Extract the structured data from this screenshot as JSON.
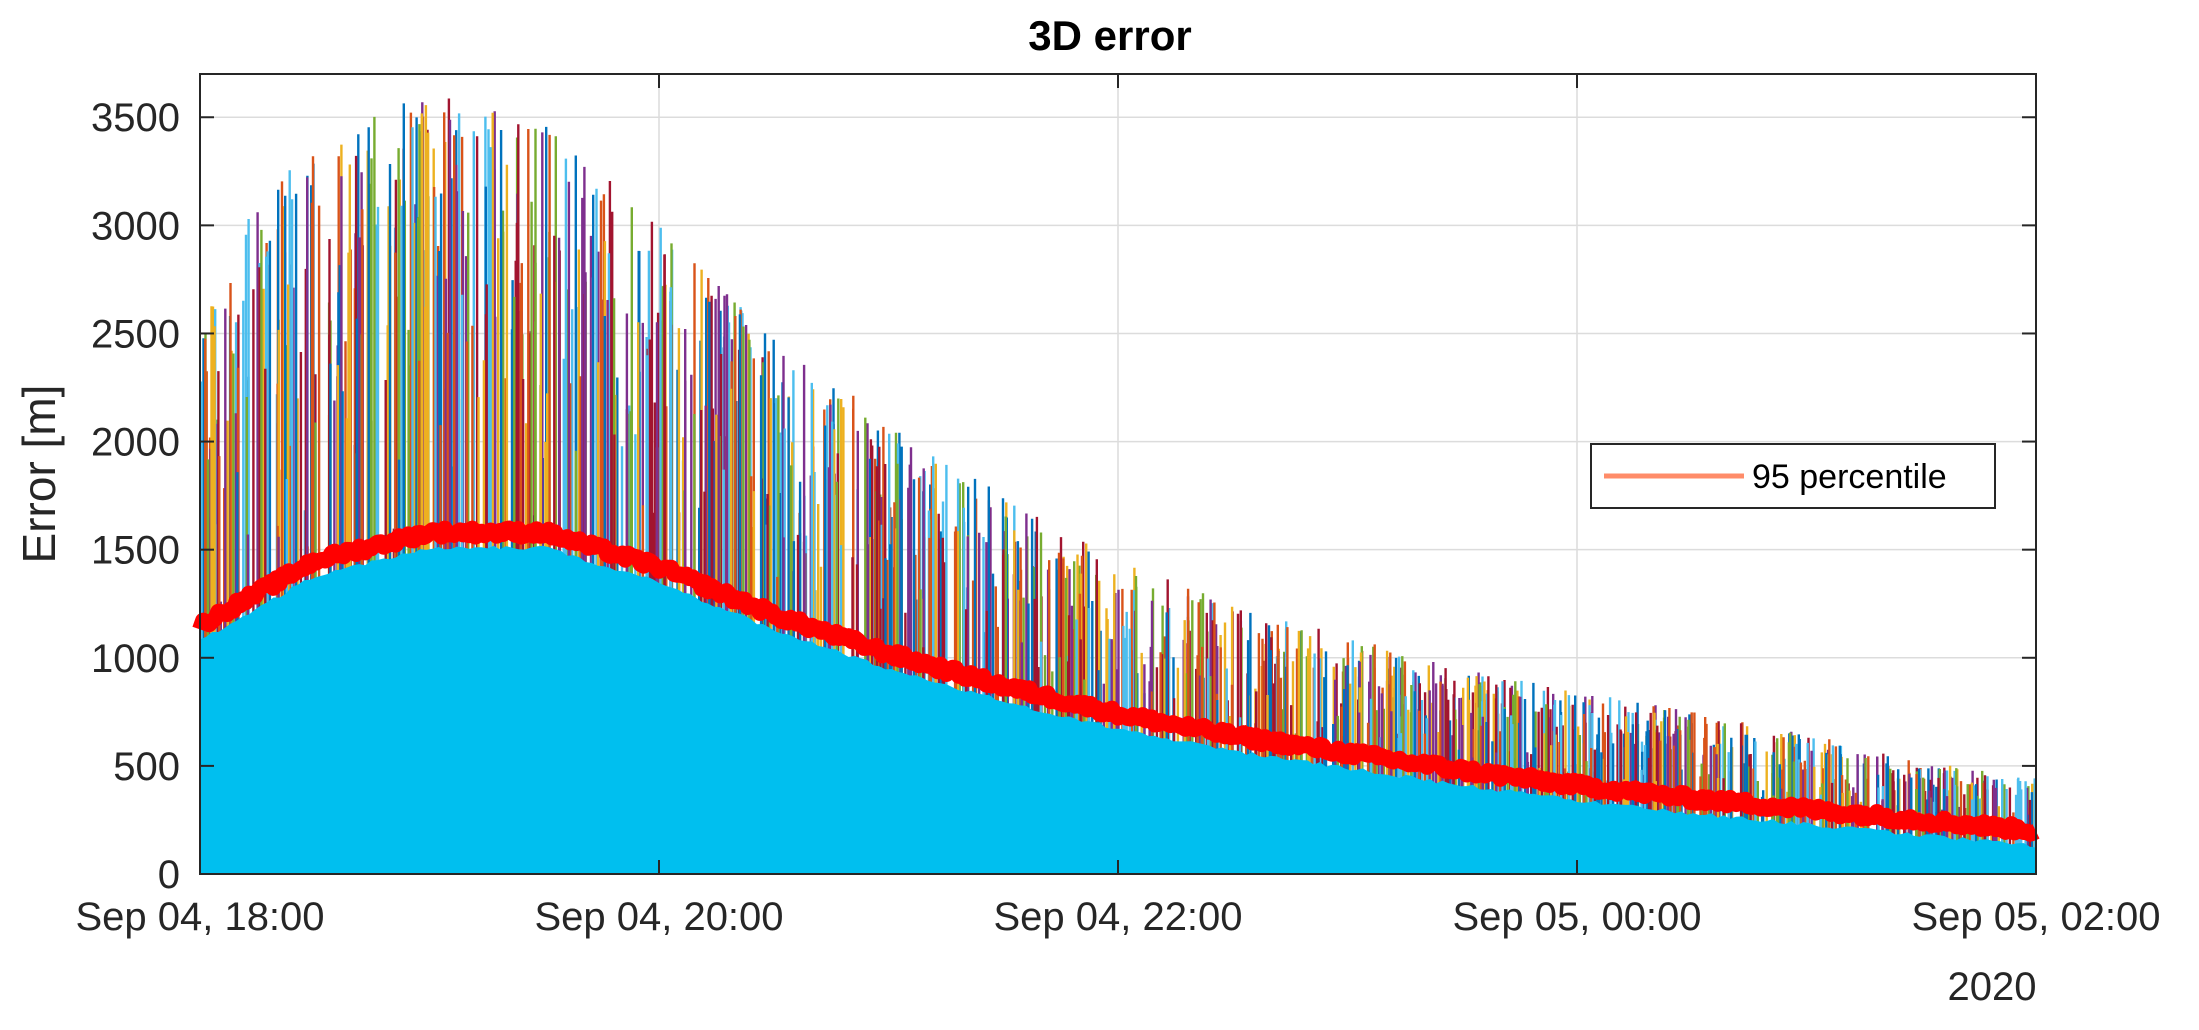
{
  "chart_data": {
    "type": "line",
    "title": "3D error",
    "xlabel": "",
    "ylabel": "Error [m]",
    "x_axis": {
      "type": "datetime",
      "range": [
        "2020-09-04T18:00",
        "2020-09-05T02:00"
      ],
      "tick_labels": [
        "Sep 04, 18:00",
        "Sep 04, 20:00",
        "Sep 04, 22:00",
        "Sep 05, 00:00",
        "Sep 05, 02:00"
      ],
      "secondary_label": "2020"
    },
    "y_axis": {
      "range": [
        0,
        3700
      ],
      "ticks": [
        0,
        500,
        1000,
        1500,
        2000,
        2500,
        3000,
        3500
      ]
    },
    "grid": true,
    "legend": {
      "placement": "right",
      "entries": [
        "95 percentile"
      ]
    },
    "colors": {
      "percentile": "#ff0000",
      "legend_line": "#ff8c69",
      "fill": "#00bfef",
      "runs": [
        "#0072bd",
        "#d95319",
        "#edb120",
        "#7e2f8e",
        "#77ac30",
        "#4dbeee",
        "#a2142f"
      ]
    },
    "series": [
      {
        "name": "95 percentile",
        "x": [
          "2020-09-04T18:00",
          "2020-09-04T18:30",
          "2020-09-04T19:00",
          "2020-09-04T19:30",
          "2020-09-04T20:00",
          "2020-09-04T20:30",
          "2020-09-04T21:00",
          "2020-09-04T21:30",
          "2020-09-04T22:00",
          "2020-09-04T22:30",
          "2020-09-04T23:00",
          "2020-09-04T23:30",
          "2020-09-05T00:00",
          "2020-09-05T00:30",
          "2020-09-05T01:00",
          "2020-09-05T01:30",
          "2020-09-05T02:00"
        ],
        "y": [
          1150,
          1450,
          1580,
          1580,
          1420,
          1200,
          1020,
          870,
          740,
          640,
          560,
          480,
          410,
          350,
          300,
          250,
          200
        ]
      },
      {
        "name": "",
        "note_type": "envelope",
        "x": [
          "2020-09-04T18:00",
          "2020-09-04T18:30",
          "2020-09-04T19:00",
          "2020-09-04T19:30",
          "2020-09-04T20:00",
          "2020-09-04T20:30",
          "2020-09-04T21:00",
          "2020-09-04T21:30",
          "2020-09-04T22:00",
          "2020-09-04T22:30",
          "2020-09-04T23:00",
          "2020-09-04T23:30",
          "2020-09-05T00:00",
          "2020-09-05T00:30",
          "2020-09-05T01:00",
          "2020-09-05T01:30",
          "2020-09-05T02:00"
        ],
        "y": [
          2800,
          3400,
          3650,
          3500,
          3000,
          2500,
          2100,
          1750,
          1450,
          1250,
          1100,
          950,
          850,
          750,
          650,
          520,
          450
        ]
      }
    ]
  }
}
